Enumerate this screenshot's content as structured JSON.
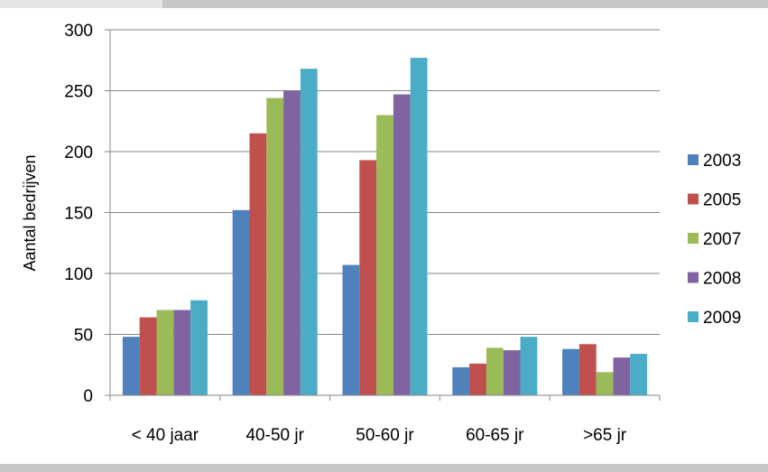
{
  "chart_data": {
    "type": "bar",
    "title": "",
    "xlabel": "",
    "ylabel": "Aantal bedrijven",
    "ylim": [
      0,
      300
    ],
    "yticks": [
      "0",
      "50",
      "100",
      "150",
      "200",
      "250",
      "300"
    ],
    "categories": [
      "< 40 jaar",
      "40-50 jr",
      "50-60 jr",
      "60-65 jr",
      ">65 jr"
    ],
    "grid": true,
    "legend_position": "right",
    "series": [
      {
        "name": "2003",
        "color": "#4f81bd",
        "values": [
          48,
          152,
          107,
          23,
          38
        ]
      },
      {
        "name": "2005",
        "color": "#c0504d",
        "values": [
          64,
          215,
          193,
          26,
          42
        ]
      },
      {
        "name": "2007",
        "color": "#9bbb59",
        "values": [
          70,
          244,
          230,
          39,
          19
        ]
      },
      {
        "name": "2008",
        "color": "#8064a2",
        "values": [
          70,
          250,
          247,
          37,
          31
        ]
      },
      {
        "name": "2009",
        "color": "#4bacc6",
        "values": [
          78,
          268,
          277,
          48,
          34
        ]
      }
    ]
  }
}
